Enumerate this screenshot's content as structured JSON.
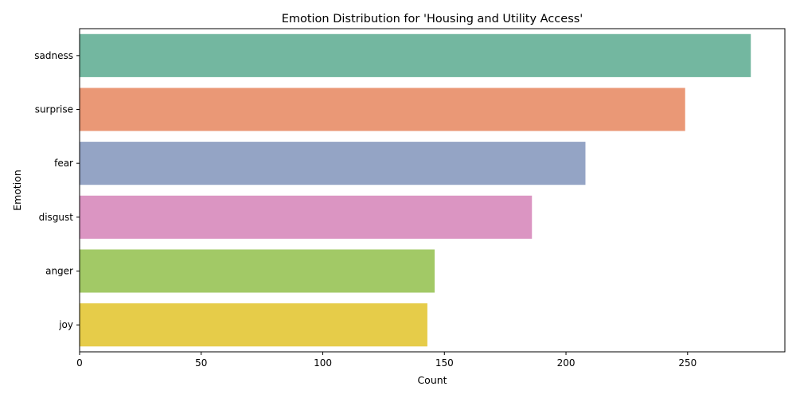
{
  "chart_data": {
    "type": "bar",
    "orientation": "horizontal",
    "title": "Emotion Distribution for 'Housing and Utility Access'",
    "xlabel": "Count",
    "ylabel": "Emotion",
    "categories": [
      "sadness",
      "surprise",
      "fear",
      "disgust",
      "anger",
      "joy"
    ],
    "values": [
      276,
      249,
      208,
      186,
      146,
      143
    ],
    "colors": [
      "#73b7a0",
      "#ea9876",
      "#94a4c5",
      "#db95c2",
      "#a2c966",
      "#e6cc49"
    ],
    "xlim": [
      0,
      290
    ],
    "xticks": [
      0,
      50,
      100,
      150,
      200,
      250
    ],
    "grid": false,
    "legend": "none"
  }
}
